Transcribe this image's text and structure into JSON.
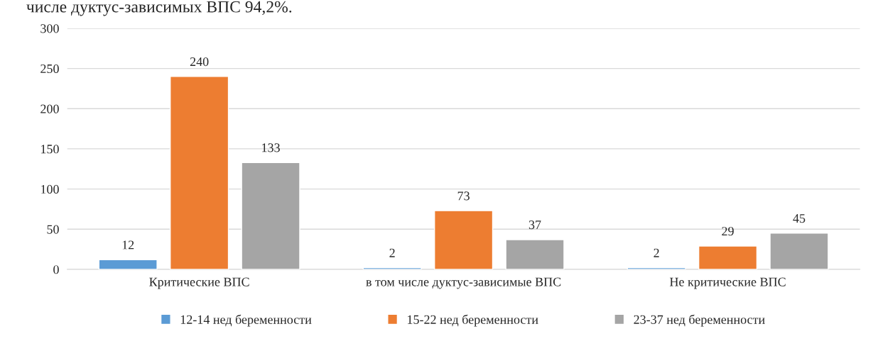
{
  "chart_data": {
    "type": "bar",
    "categories": [
      "Критические ВПС",
      "в том числе дуктус-зависимые ВПС",
      "Не критические ВПС"
    ],
    "series": [
      {
        "name": "12-14 нед беременности",
        "color": "#5b9bd5",
        "values": [
          12,
          2,
          2
        ]
      },
      {
        "name": "15-22 нед беременности",
        "color": "#ed7d31",
        "values": [
          240,
          73,
          29
        ]
      },
      {
        "name": "23-37 нед беременности",
        "color": "#a5a5a5",
        "values": [
          133,
          37,
          45
        ]
      }
    ],
    "ylim": [
      0,
      300
    ],
    "yticks": [
      0,
      50,
      100,
      150,
      200,
      250,
      300
    ],
    "grid": "y",
    "legend": "bottom",
    "data_labels": true,
    "annotations": [
      "числе дуктус-зависимых ВПС 94,2%."
    ]
  }
}
